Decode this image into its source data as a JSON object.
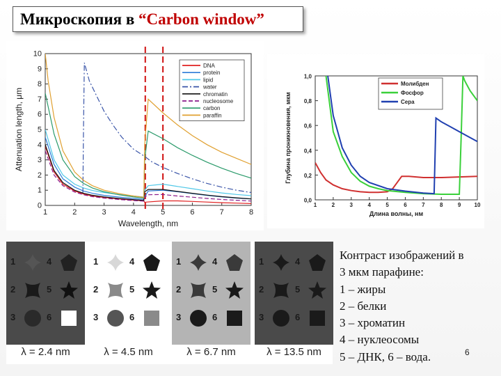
{
  "slide": {
    "title_prefix": "Микроскопия в ",
    "title_accent": "“Carbon window”",
    "page_number": "6",
    "caption_lines": [
      "Контраст изображений в",
      "3 мкм парафине:",
      "1 – жиры",
      "2 – белки",
      "3 – хроматин",
      "4 – нуклеосомы",
      "5 – ДНК, 6 – вода."
    ]
  },
  "chart_data": [
    {
      "type": "line",
      "xlabel": "Wavelength, nm",
      "ylabel": "Attenuation length, μm",
      "xlim": [
        1,
        8
      ],
      "ylim": [
        0,
        10
      ],
      "x_ticks": [
        "1",
        "2",
        "3",
        "4",
        "5",
        "6",
        "7",
        "8"
      ],
      "y_ticks": [
        "0",
        "1",
        "2",
        "3",
        "4",
        "5",
        "6",
        "7",
        "8",
        "9",
        "10"
      ],
      "x_tick_values": [
        1,
        2,
        3,
        4,
        5,
        6,
        7,
        8
      ],
      "y_tick_values": [
        0,
        1,
        2,
        3,
        4,
        5,
        6,
        7,
        8,
        9,
        10
      ],
      "legend_position": "top-right",
      "markers": [
        4.4,
        5.0
      ],
      "marker_color": "#d01010",
      "series": [
        {
          "name": "DNA",
          "color": "#e02020",
          "dash": "",
          "points": [
            [
              1,
              3.9
            ],
            [
              1.3,
              2.2
            ],
            [
              1.6,
              1.4
            ],
            [
              2,
              0.95
            ],
            [
              2.3,
              0.75
            ],
            [
              2.6,
              0.62
            ],
            [
              3,
              0.52
            ],
            [
              3.5,
              0.42
            ],
            [
              4,
              0.35
            ],
            [
              4.35,
              0.3
            ],
            [
              4.38,
              0.2
            ],
            [
              4.45,
              0.22
            ],
            [
              5,
              0.3
            ],
            [
              5.5,
              0.3
            ],
            [
              6,
              0.26
            ],
            [
              6.5,
              0.22
            ],
            [
              7,
              0.18
            ],
            [
              7.5,
              0.15
            ],
            [
              8,
              0.12
            ]
          ]
        },
        {
          "name": "protein",
          "color": "#2b7bd8",
          "dash": "",
          "points": [
            [
              1,
              4.5
            ],
            [
              1.3,
              2.7
            ],
            [
              1.6,
              1.75
            ],
            [
              2,
              1.2
            ],
            [
              2.3,
              0.95
            ],
            [
              2.6,
              0.8
            ],
            [
              3,
              0.66
            ],
            [
              3.5,
              0.55
            ],
            [
              4,
              0.46
            ],
            [
              4.35,
              0.4
            ],
            [
              4.38,
              0.55
            ],
            [
              4.5,
              0.95
            ],
            [
              5,
              1.0
            ],
            [
              5.5,
              0.9
            ],
            [
              6,
              0.78
            ],
            [
              6.5,
              0.66
            ],
            [
              7,
              0.56
            ],
            [
              7.5,
              0.48
            ],
            [
              8,
              0.42
            ]
          ]
        },
        {
          "name": "lipid",
          "color": "#50c8e8",
          "dash": "",
          "points": [
            [
              1,
              5.0
            ],
            [
              1.3,
              3.0
            ],
            [
              1.6,
              2.0
            ],
            [
              2,
              1.4
            ],
            [
              2.3,
              1.15
            ],
            [
              2.6,
              0.98
            ],
            [
              3,
              0.85
            ],
            [
              3.5,
              0.72
            ],
            [
              4,
              0.62
            ],
            [
              4.35,
              0.55
            ],
            [
              4.38,
              1.0
            ],
            [
              4.5,
              1.3
            ],
            [
              5,
              1.4
            ],
            [
              5.5,
              1.25
            ],
            [
              6,
              1.1
            ],
            [
              6.5,
              0.95
            ],
            [
              7,
              0.82
            ],
            [
              7.5,
              0.72
            ],
            [
              8,
              0.64
            ]
          ]
        },
        {
          "name": "water",
          "color": "#3a55a8",
          "dash": "8,3,2,3",
          "points": [
            [
              2.28,
              0.8
            ],
            [
              2.3,
              5
            ],
            [
              2.33,
              9.4
            ],
            [
              2.5,
              8.2
            ],
            [
              2.8,
              7.0
            ],
            [
              3,
              6.2
            ],
            [
              3.3,
              5.3
            ],
            [
              3.6,
              4.5
            ],
            [
              4,
              3.7
            ],
            [
              4.4,
              3.2
            ],
            [
              4.6,
              2.9
            ],
            [
              5,
              2.5
            ],
            [
              5.5,
              2.1
            ],
            [
              6,
              1.75
            ],
            [
              6.5,
              1.45
            ],
            [
              7,
              1.2
            ],
            [
              7.5,
              1.0
            ],
            [
              8,
              0.85
            ]
          ]
        },
        {
          "name": "chromatin",
          "color": "#111111",
          "dash": "",
          "points": [
            [
              1,
              4.0
            ],
            [
              1.3,
              2.3
            ],
            [
              1.6,
              1.5
            ],
            [
              2,
              1.0
            ],
            [
              2.3,
              0.8
            ],
            [
              2.6,
              0.67
            ],
            [
              3,
              0.56
            ],
            [
              3.5,
              0.46
            ],
            [
              4,
              0.38
            ],
            [
              4.35,
              0.33
            ],
            [
              4.38,
              0.9
            ],
            [
              4.5,
              1.05
            ],
            [
              5,
              1.05
            ],
            [
              5.5,
              0.92
            ],
            [
              6,
              0.8
            ],
            [
              6.5,
              0.68
            ],
            [
              7,
              0.58
            ],
            [
              7.5,
              0.5
            ],
            [
              8,
              0.43
            ]
          ]
        },
        {
          "name": "nucleosome",
          "color": "#8a1a8a",
          "dash": "6,3",
          "points": [
            [
              1,
              3.6
            ],
            [
              1.3,
              2.0
            ],
            [
              1.6,
              1.3
            ],
            [
              2,
              0.88
            ],
            [
              2.3,
              0.7
            ],
            [
              2.6,
              0.58
            ],
            [
              3,
              0.48
            ],
            [
              3.5,
              0.39
            ],
            [
              4,
              0.32
            ],
            [
              4.35,
              0.28
            ],
            [
              4.38,
              0.55
            ],
            [
              4.5,
              0.7
            ],
            [
              5,
              0.72
            ],
            [
              5.5,
              0.62
            ],
            [
              6,
              0.54
            ],
            [
              6.5,
              0.46
            ],
            [
              7,
              0.39
            ],
            [
              7.5,
              0.34
            ],
            [
              8,
              0.29
            ]
          ]
        },
        {
          "name": "carbon",
          "color": "#2a9a6a",
          "dash": "",
          "points": [
            [
              1,
              7.4
            ],
            [
              1.3,
              4.7
            ],
            [
              1.6,
              3.0
            ],
            [
              2,
              1.9
            ],
            [
              2.3,
              1.45
            ],
            [
              2.6,
              1.15
            ],
            [
              3,
              0.9
            ],
            [
              3.5,
              0.7
            ],
            [
              4,
              0.56
            ],
            [
              4.35,
              0.48
            ],
            [
              4.38,
              3.0
            ],
            [
              4.5,
              4.9
            ],
            [
              5,
              4.4
            ],
            [
              5.5,
              3.8
            ],
            [
              6,
              3.3
            ],
            [
              6.5,
              2.85
            ],
            [
              7,
              2.45
            ],
            [
              7.5,
              2.1
            ],
            [
              8,
              1.8
            ]
          ]
        },
        {
          "name": "paraffin",
          "color": "#e0a030",
          "dash": "",
          "points": [
            [
              1,
              10
            ],
            [
              1.1,
              8.2
            ],
            [
              1.3,
              5.8
            ],
            [
              1.6,
              3.6
            ],
            [
              2,
              2.2
            ],
            [
              2.3,
              1.65
            ],
            [
              2.6,
              1.3
            ],
            [
              3,
              1.0
            ],
            [
              3.5,
              0.78
            ],
            [
              4,
              0.62
            ],
            [
              4.35,
              0.53
            ],
            [
              4.38,
              4.0
            ],
            [
              4.5,
              7.0
            ],
            [
              5,
              6.1
            ],
            [
              5.5,
              5.3
            ],
            [
              6,
              4.6
            ],
            [
              6.5,
              4.0
            ],
            [
              7,
              3.5
            ],
            [
              7.5,
              3.1
            ],
            [
              8,
              2.7
            ]
          ]
        }
      ]
    },
    {
      "type": "line",
      "xlabel": "Длина волны, нм",
      "ylabel": "Глубина проникновения, мкм",
      "xlim": [
        1,
        10
      ],
      "ylim": [
        0,
        1.0
      ],
      "x_ticks": [
        "1",
        "2",
        "3",
        "4",
        "5",
        "6",
        "7",
        "8",
        "9",
        "10"
      ],
      "y_ticks": [
        "0,0",
        "0,2",
        "0,4",
        "0,6",
        "0,8",
        "1,0"
      ],
      "x_tick_values": [
        1,
        2,
        3,
        4,
        5,
        6,
        7,
        8,
        9,
        10
      ],
      "y_tick_values": [
        0,
        0.2,
        0.4,
        0.6,
        0.8,
        1.0
      ],
      "legend_position": "top-right",
      "series": [
        {
          "name": "Молибден",
          "color": "#d03030",
          "points": [
            [
              1,
              0.3
            ],
            [
              1.3,
              0.22
            ],
            [
              1.6,
              0.16
            ],
            [
              2,
              0.12
            ],
            [
              2.5,
              0.09
            ],
            [
              3,
              0.075
            ],
            [
              3.5,
              0.065
            ],
            [
              4,
              0.06
            ],
            [
              4.5,
              0.06
            ],
            [
              5,
              0.065
            ],
            [
              5.3,
              0.09
            ],
            [
              5.6,
              0.15
            ],
            [
              5.8,
              0.19
            ],
            [
              6.2,
              0.19
            ],
            [
              7,
              0.18
            ],
            [
              8,
              0.18
            ],
            [
              9,
              0.185
            ],
            [
              10,
              0.19
            ]
          ]
        },
        {
          "name": "Фосфор",
          "color": "#3ad03a",
          "points": [
            [
              1.6,
              1.0
            ],
            [
              2,
              0.55
            ],
            [
              2.5,
              0.35
            ],
            [
              3,
              0.22
            ],
            [
              3.5,
              0.15
            ],
            [
              4,
              0.11
            ],
            [
              4.5,
              0.09
            ],
            [
              5,
              0.075
            ],
            [
              6,
              0.06
            ],
            [
              7,
              0.05
            ],
            [
              8,
              0.045
            ],
            [
              9,
              0.045
            ],
            [
              9.1,
              0.5
            ],
            [
              9.2,
              1.0
            ],
            [
              9.3,
              0.96
            ],
            [
              9.6,
              0.88
            ],
            [
              10,
              0.8
            ]
          ]
        },
        {
          "name": "Сера",
          "color": "#2040b0",
          "points": [
            [
              1.7,
              1.0
            ],
            [
              2,
              0.68
            ],
            [
              2.5,
              0.42
            ],
            [
              3,
              0.28
            ],
            [
              3.5,
              0.19
            ],
            [
              4,
              0.14
            ],
            [
              5,
              0.09
            ],
            [
              6,
              0.07
            ],
            [
              7,
              0.055
            ],
            [
              7.6,
              0.05
            ],
            [
              7.65,
              0.35
            ],
            [
              7.7,
              0.66
            ],
            [
              8,
              0.63
            ],
            [
              8.5,
              0.59
            ],
            [
              9,
              0.55
            ],
            [
              9.5,
              0.51
            ],
            [
              10,
              0.47
            ]
          ]
        }
      ]
    }
  ],
  "contrast_panels": [
    {
      "label": "λ = 2.4 nm",
      "bg": "#4a4a4a",
      "shapes": [
        "#555555",
        "#1a1a1a",
        "#2a2a2a",
        "#222222",
        "#111111",
        "#ffffff"
      ],
      "numcolor": "#1a1a1a"
    },
    {
      "label": "λ = 4.5 nm",
      "bg": "#ffffff",
      "shapes": [
        "#d8d8d8",
        "#8a8a8a",
        "#555555",
        "#1a1a1a",
        "#1a1a1a",
        "#8a8a8a"
      ],
      "numcolor": "#1a1a1a"
    },
    {
      "label": "λ = 6.7 nm",
      "bg": "#b4b4b4",
      "shapes": [
        "#3a3a3a",
        "#3a3a3a",
        "#1a1a1a",
        "#3a3a3a",
        "#1a1a1a",
        "#1a1a1a"
      ],
      "numcolor": "#1a1a1a"
    },
    {
      "label": "λ = 13.5 nm",
      "bg": "#4a4a4a",
      "shapes": [
        "#1a1a1a",
        "#1a1a1a",
        "#1a1a1a",
        "#1a1a1a",
        "#1a1a1a",
        "#1a1a1a"
      ],
      "numcolor": "#222222"
    }
  ],
  "shape_numbers": [
    "1",
    "2",
    "3",
    "4",
    "5",
    "6"
  ]
}
